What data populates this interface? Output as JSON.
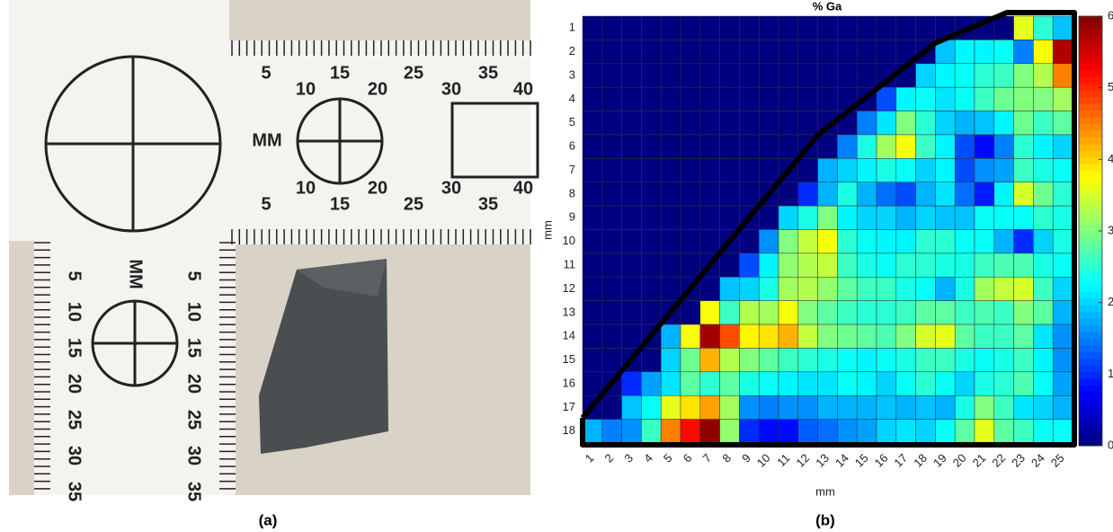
{
  "photo": {
    "scale_label": "MM",
    "top_scale": [
      "5",
      "10",
      "15",
      "20",
      "25",
      "30",
      "35",
      "40"
    ],
    "side_scale": [
      "5",
      "10",
      "15",
      "20",
      "25",
      "30",
      "35"
    ]
  },
  "captions": [
    "(a)",
    "(b)"
  ],
  "chart_data": {
    "type": "heatmap",
    "title": "% Ga",
    "x_label": "mm",
    "y_label": "mm",
    "x": [
      "1",
      "2",
      "3",
      "4",
      "5",
      "6",
      "7",
      "8",
      "9",
      "10",
      "11",
      "12",
      "13",
      "14",
      "15",
      "16",
      "17",
      "18",
      "19",
      "20",
      "21",
      "22",
      "23",
      "24",
      "25"
    ],
    "y": [
      "1",
      "2",
      "3",
      "4",
      "5",
      "6",
      "7",
      "8",
      "9",
      "10",
      "11",
      "12",
      "13",
      "14",
      "15",
      "16",
      "17",
      "18"
    ],
    "colormap": "jet",
    "zlim": [
      0,
      6
    ],
    "zticks": [
      0,
      1,
      2,
      3,
      4,
      5,
      6
    ],
    "z": [
      [
        0,
        0,
        0,
        0,
        0,
        0,
        0,
        0,
        0,
        0,
        0,
        0,
        0,
        0,
        0,
        0,
        0,
        0,
        0,
        0,
        0,
        0,
        3.6,
        2.5,
        1.9
      ],
      [
        0,
        0,
        0,
        0,
        0,
        0,
        0,
        0,
        0,
        0,
        0,
        0,
        0,
        0,
        0,
        0,
        0,
        0,
        1.9,
        2.2,
        2.2,
        2.3,
        1.5,
        3.7,
        5.7
      ],
      [
        0,
        0,
        0,
        0,
        0,
        0,
        0,
        0,
        0,
        0,
        0,
        0,
        0,
        0,
        0,
        0,
        0,
        2.0,
        2.2,
        2.3,
        2.5,
        2.6,
        3.0,
        3.3,
        4.5
      ],
      [
        0,
        0,
        0,
        0,
        0,
        0,
        0,
        0,
        0,
        0,
        0,
        0,
        0,
        0,
        0,
        1.2,
        2.2,
        2.3,
        2.1,
        2.3,
        2.6,
        2.9,
        3.0,
        3.0,
        3.2
      ],
      [
        0,
        0,
        0,
        0,
        0,
        0,
        0,
        0,
        0,
        0,
        0,
        0,
        0,
        0,
        1.5,
        2.1,
        3.0,
        2.5,
        2.0,
        1.8,
        1.9,
        2.2,
        2.9,
        2.6,
        2.8
      ],
      [
        0,
        0,
        0,
        0,
        0,
        0,
        0,
        0,
        0,
        0,
        0,
        0,
        0,
        1.5,
        2.4,
        3.2,
        3.7,
        2.6,
        2.2,
        1.2,
        0.8,
        1.5,
        2.5,
        2.2,
        2.0
      ],
      [
        0,
        0,
        0,
        0,
        0,
        0,
        0,
        0,
        0,
        0,
        0,
        0,
        1.8,
        2.0,
        2.2,
        2.4,
        2.3,
        2.0,
        2.2,
        1.2,
        1.6,
        1.7,
        2.6,
        2.4,
        2.3
      ],
      [
        0,
        0,
        0,
        0,
        0,
        0,
        0,
        0,
        0,
        0,
        0,
        1.0,
        1.8,
        2.4,
        1.8,
        1.4,
        1.2,
        1.8,
        2.1,
        1.4,
        0.9,
        2.2,
        3.5,
        2.9,
        2.5
      ],
      [
        0,
        0,
        0,
        0,
        0,
        0,
        0,
        0,
        0,
        0,
        2.0,
        2.4,
        3.0,
        2.2,
        2.0,
        2.0,
        1.8,
        2.0,
        1.9,
        1.9,
        2.3,
        2.3,
        2.3,
        2.5,
        2.4
      ],
      [
        0,
        0,
        0,
        0,
        0,
        0,
        0,
        0,
        0,
        1.6,
        3.0,
        3.4,
        3.7,
        2.5,
        2.3,
        2.2,
        2.2,
        2.5,
        2.5,
        2.3,
        2.3,
        1.8,
        1.0,
        2.0,
        2.4
      ],
      [
        0,
        0,
        0,
        0,
        0,
        0,
        0,
        0,
        1.2,
        2.2,
        3.1,
        3.3,
        3.4,
        2.6,
        2.4,
        2.3,
        2.5,
        2.5,
        2.4,
        2.4,
        2.6,
        2.7,
        2.7,
        2.4,
        2.3
      ],
      [
        0,
        0,
        0,
        0,
        0,
        0,
        0,
        1.9,
        2.0,
        2.4,
        3.2,
        3.3,
        3.1,
        2.8,
        2.6,
        2.6,
        2.4,
        2.3,
        1.8,
        2.4,
        3.2,
        3.4,
        3.5,
        2.6,
        2.0
      ],
      [
        0,
        0,
        0,
        0,
        0,
        0,
        3.7,
        2.6,
        3.3,
        3.2,
        3.7,
        3.0,
        2.8,
        2.6,
        2.5,
        2.5,
        2.6,
        2.8,
        2.8,
        2.6,
        2.7,
        2.6,
        3.0,
        2.8,
        1.8
      ],
      [
        0,
        0,
        0,
        0,
        1.8,
        3.7,
        5.8,
        4.8,
        3.8,
        3.9,
        4.2,
        3.4,
        3.0,
        2.9,
        2.8,
        2.7,
        3.0,
        3.5,
        3.6,
        2.8,
        2.6,
        2.6,
        2.8,
        2.1,
        1.6
      ],
      [
        0,
        0,
        0,
        0,
        2.0,
        2.9,
        4.2,
        3.3,
        3.0,
        2.8,
        2.6,
        2.5,
        2.4,
        2.3,
        2.2,
        2.3,
        2.4,
        2.6,
        2.6,
        2.4,
        2.3,
        2.4,
        2.6,
        2.2,
        1.6
      ],
      [
        0,
        0,
        1.0,
        1.7,
        2.1,
        2.8,
        2.5,
        2.8,
        2.4,
        2.3,
        2.2,
        2.1,
        2.1,
        2.3,
        2.2,
        2.0,
        2.3,
        2.5,
        2.3,
        2.0,
        2.4,
        2.5,
        2.7,
        2.3,
        1.7
      ],
      [
        0,
        0,
        1.9,
        2.3,
        3.6,
        3.9,
        4.3,
        3.2,
        1.6,
        1.5,
        1.6,
        1.6,
        1.8,
        1.8,
        1.8,
        1.9,
        1.8,
        1.9,
        1.8,
        2.4,
        3.0,
        2.6,
        2.1,
        2.0,
        1.8
      ],
      [
        1.8,
        1.5,
        1.6,
        2.6,
        4.5,
        5.2,
        5.9,
        3.1,
        1.0,
        0.8,
        0.8,
        1.3,
        1.4,
        1.6,
        1.7,
        2.0,
        2.1,
        2.0,
        2.3,
        2.8,
        3.6,
        2.8,
        2.6,
        2.3,
        2.3
      ]
    ]
  }
}
